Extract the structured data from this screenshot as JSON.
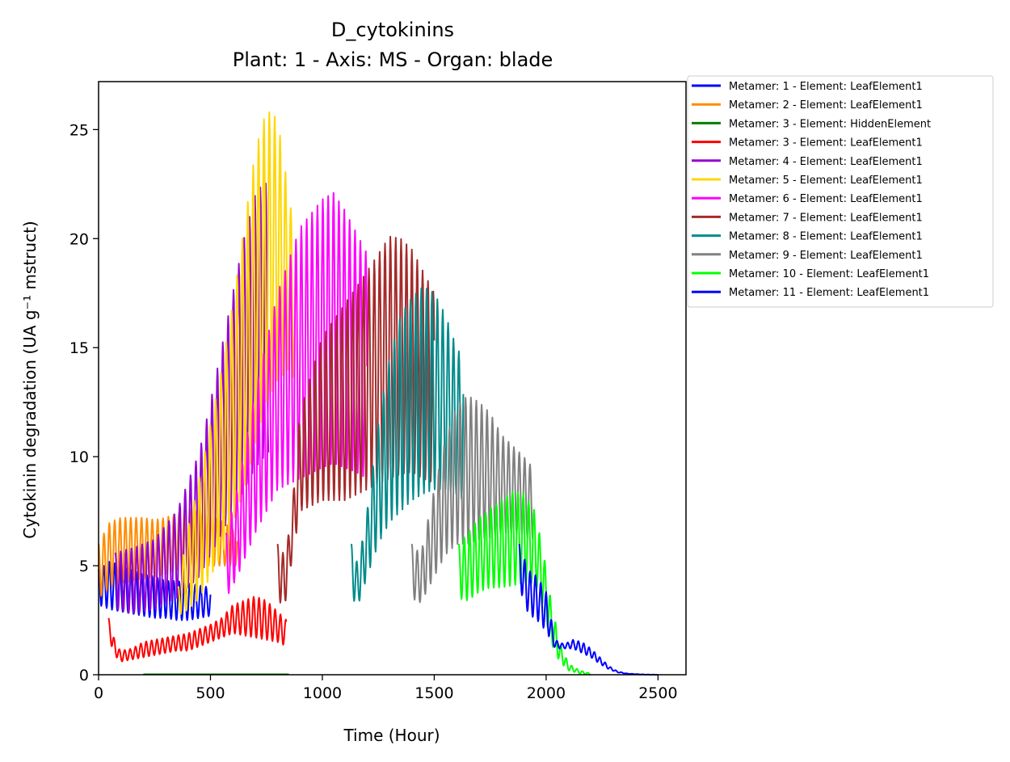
{
  "chart_data": {
    "type": "line",
    "title": "D_cytokinins",
    "subtitle": "Plant: 1 - Axis: MS - Organ: blade",
    "xlabel": "Time (Hour)",
    "ylabel": "Cytokinin degradation (UA g⁻¹ mstruct)",
    "xlim": [
      0,
      2625
    ],
    "ylim": [
      0,
      27.2
    ],
    "xticks": [
      0,
      500,
      1000,
      1500,
      2000,
      2500
    ],
    "yticks": [
      0,
      5,
      10,
      15,
      20,
      25
    ],
    "grid": false,
    "legend_position": "outside-top-right",
    "series": [
      {
        "name": "Metamer: 1 - Element: LeafElement1",
        "color": "#0000ff",
        "oscillating": true,
        "x": [
          0,
          50,
          100,
          150,
          200,
          250,
          300,
          350,
          400,
          450,
          500
        ],
        "upper": [
          4.8,
          5.2,
          5.0,
          4.8,
          4.6,
          4.5,
          4.3,
          4.3,
          4.2,
          4.1,
          4.0
        ],
        "lower": [
          3.2,
          3.0,
          2.9,
          2.8,
          2.7,
          2.6,
          2.6,
          2.5,
          2.5,
          2.6,
          2.7
        ]
      },
      {
        "name": "Metamer: 2 - Element: LeafElement1",
        "color": "#ff8c00",
        "oscillating": true,
        "x": [
          0,
          50,
          100,
          150,
          200,
          250,
          300,
          350,
          400,
          450,
          500,
          560,
          620
        ],
        "upper": [
          6.0,
          7.0,
          7.2,
          7.2,
          7.2,
          7.1,
          7.2,
          7.4,
          7.6,
          7.5,
          7.3,
          7.0,
          6.5
        ],
        "lower": [
          3.5,
          4.0,
          4.2,
          4.3,
          4.4,
          4.5,
          4.6,
          4.8,
          4.9,
          5.0,
          5.0,
          5.0,
          5.0
        ]
      },
      {
        "name": "Metamer: 3 - Element: HiddenElement",
        "color": "#008000",
        "oscillating": false,
        "x": [
          200,
          850
        ],
        "values": [
          0.02,
          0.02
        ]
      },
      {
        "name": "Metamer: 3 - Element: LeafElement1",
        "color": "#ff0000",
        "oscillating": true,
        "x": [
          45,
          60,
          80,
          100,
          150,
          200,
          250,
          300,
          350,
          400,
          450,
          500,
          550,
          600,
          650,
          700,
          750,
          800,
          840
        ],
        "upper": [
          2.6,
          2.0,
          1.3,
          1.1,
          1.2,
          1.5,
          1.6,
          1.7,
          1.8,
          1.9,
          2.1,
          2.3,
          2.6,
          3.2,
          3.4,
          3.6,
          3.4,
          2.9,
          2.5
        ],
        "lower": [
          2.0,
          1.2,
          0.8,
          0.6,
          0.7,
          0.8,
          0.9,
          1.0,
          1.1,
          1.1,
          1.3,
          1.5,
          1.7,
          1.9,
          1.8,
          1.7,
          1.6,
          1.5,
          1.3
        ]
      },
      {
        "name": "Metamer: 4 - Element: LeafElement1",
        "color": "#9400d3",
        "oscillating": true,
        "x": [
          75,
          150,
          250,
          350,
          450,
          500,
          550,
          600,
          650,
          700,
          740,
          760
        ],
        "upper": [
          5.6,
          5.8,
          6.2,
          7.5,
          10.2,
          12.5,
          15.0,
          17.5,
          20.0,
          22.0,
          22.6,
          22.4
        ],
        "lower": [
          3.0,
          2.8,
          3.0,
          3.5,
          4.5,
          5.5,
          6.5,
          7.5,
          8.5,
          9.5,
          10.0,
          10.2
        ]
      },
      {
        "name": "Metamer: 5 - Element: LeafElement1",
        "color": "#ffd700",
        "oscillating": true,
        "x": [
          355,
          400,
          450,
          500,
          550,
          600,
          650,
          700,
          750,
          800,
          850,
          880
        ],
        "upper": [
          4.0,
          6.8,
          9.0,
          11.5,
          14.0,
          17.0,
          20.5,
          24.0,
          25.9,
          25.5,
          22.0,
          20.0
        ],
        "lower": [
          2.7,
          3.0,
          3.5,
          4.5,
          5.5,
          7.0,
          8.5,
          10.5,
          12.5,
          13.5,
          14.0,
          13.5
        ]
      },
      {
        "name": "Metamer: 6 - Element: LeafElement1",
        "color": "#ff00ff",
        "oscillating": true,
        "x": [
          570,
          620,
          700,
          800,
          900,
          1000,
          1050,
          1100,
          1150,
          1200
        ],
        "upper": [
          6.5,
          8.5,
          13.0,
          17.5,
          20.5,
          21.8,
          22.1,
          21.3,
          20.3,
          19.3
        ],
        "lower": [
          3.5,
          4.5,
          6.5,
          8.5,
          9.0,
          9.5,
          9.7,
          9.5,
          9.3,
          9.0
        ]
      },
      {
        "name": "Metamer: 7 - Element: LeafElement1",
        "color": "#a52a2a",
        "oscillating": true,
        "x": [
          800,
          830,
          860,
          900,
          1000,
          1100,
          1200,
          1300,
          1350,
          1400,
          1450,
          1500
        ],
        "upper": [
          6.0,
          5.5,
          7.0,
          12.0,
          15.5,
          17.0,
          18.5,
          20.1,
          20.0,
          19.5,
          18.5,
          17.5
        ],
        "lower": [
          3.5,
          3.0,
          5.0,
          7.5,
          8.0,
          8.0,
          8.5,
          9.0,
          9.2,
          9.3,
          9.0,
          8.8
        ]
      },
      {
        "name": "Metamer: 8 - Element: LeafElement1",
        "color": "#008b8b",
        "oscillating": true,
        "x": [
          1130,
          1160,
          1200,
          1250,
          1300,
          1350,
          1400,
          1450,
          1500,
          1550,
          1600,
          1630
        ],
        "upper": [
          6.0,
          5.0,
          7.5,
          11.5,
          14.5,
          16.5,
          17.3,
          17.8,
          17.5,
          16.5,
          15.0,
          14.5
        ],
        "lower": [
          3.5,
          3.2,
          4.5,
          6.0,
          7.0,
          7.5,
          8.0,
          8.3,
          8.5,
          8.5,
          8.3,
          8.0
        ]
      },
      {
        "name": "Metamer: 9 - Element: LeafElement1",
        "color": "#808080",
        "oscillating": true,
        "x": [
          1400,
          1440,
          1500,
          1550,
          1600,
          1650,
          1700,
          1750,
          1800,
          1850,
          1900,
          1940
        ],
        "upper": [
          6.0,
          5.5,
          8.5,
          10.8,
          12.3,
          12.8,
          12.5,
          12.0,
          11.0,
          10.5,
          10.0,
          9.5
        ],
        "lower": [
          3.5,
          3.3,
          4.5,
          5.5,
          6.0,
          6.0,
          6.2,
          6.3,
          6.5,
          6.5,
          6.4,
          6.2
        ]
      },
      {
        "name": "Metamer: 10 - Element: LeafElement1",
        "color": "#00ff00",
        "oscillating": true,
        "x": [
          1610,
          1650,
          1700,
          1750,
          1800,
          1850,
          1900,
          1950,
          1990,
          2020,
          2060,
          2100,
          2150,
          2200
        ],
        "upper": [
          6.0,
          6.5,
          7.2,
          7.6,
          8.0,
          8.4,
          8.3,
          7.5,
          5.5,
          3.5,
          1.5,
          0.5,
          0.2,
          0.05
        ],
        "lower": [
          3.5,
          3.4,
          3.8,
          4.0,
          4.0,
          4.1,
          4.2,
          4.2,
          3.0,
          1.5,
          0.6,
          0.2,
          0.05,
          0.0
        ]
      },
      {
        "name": "Metamer: 11 - Element: LeafElement1",
        "color": "#0000ff",
        "oscillating": true,
        "x": [
          1880,
          1920,
          1960,
          2000,
          2040,
          2080,
          2120,
          2160,
          2200,
          2240,
          2280,
          2320,
          2360,
          2400,
          2450,
          2500
        ],
        "upper": [
          6.0,
          4.8,
          4.5,
          3.8,
          1.6,
          1.4,
          1.6,
          1.5,
          1.2,
          0.8,
          0.4,
          0.15,
          0.06,
          0.03,
          0.01,
          0.0
        ],
        "lower": [
          4.0,
          2.8,
          2.5,
          2.0,
          1.2,
          1.2,
          1.2,
          1.0,
          0.8,
          0.5,
          0.25,
          0.1,
          0.04,
          0.02,
          0.0,
          0.0
        ]
      }
    ]
  }
}
